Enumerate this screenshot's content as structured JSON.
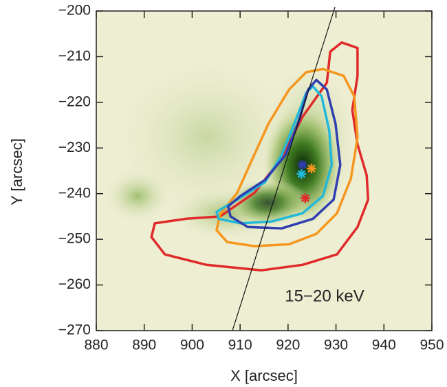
{
  "chart_data": {
    "type": "contour",
    "annotation": "15−20 keV",
    "xlabel": "X [arcsec]",
    "ylabel": "Y [arcsec]",
    "xlim": [
      880,
      950
    ],
    "ylim": [
      -270,
      -200
    ],
    "xticks": [
      880,
      890,
      900,
      910,
      920,
      930,
      940,
      950
    ],
    "yticks": [
      {
        "value": -270,
        "label": "−270"
      },
      {
        "value": -260,
        "label": "−260"
      },
      {
        "value": -250,
        "label": "−250"
      },
      {
        "value": -240,
        "label": "−240"
      },
      {
        "value": -230,
        "label": "−230"
      },
      {
        "value": -220,
        "label": "−220"
      },
      {
        "value": -210,
        "label": "−210"
      },
      {
        "value": -200,
        "label": "−200"
      }
    ],
    "contours": [
      {
        "color": "#e02a2a",
        "x": [
          931.2,
          934.5,
          934.5,
          933.4,
          934.5,
          936.4,
          936.7,
          934.5,
          930.2,
          923.0,
          914.4,
          903.0,
          894.3,
          891.5,
          892.2,
          898.7,
          905.8,
          913.0,
          918.7,
          923.0,
          928.1,
          928.8
        ],
        "y": [
          -206.9,
          -208.1,
          -214.2,
          -221.7,
          -229.2,
          -236.0,
          -241.3,
          -247.3,
          -253.3,
          -255.6,
          -256.8,
          -255.6,
          -253.3,
          -249.5,
          -246.5,
          -245.5,
          -245.0,
          -239.8,
          -232.2,
          -223.2,
          -215.7,
          -208.9
        ]
      },
      {
        "color": "#f5961e",
        "x": [
          927.3,
          931.6,
          933.8,
          934.5,
          933.1,
          930.2,
          925.9,
          920.2,
          913.0,
          907.3,
          905.1,
          905.8,
          909.4,
          912.3,
          915.9,
          920.2,
          923.8
        ],
        "y": [
          -212.7,
          -214.2,
          -218.7,
          -227.7,
          -236.7,
          -244.3,
          -248.8,
          -251.1,
          -251.5,
          -250.6,
          -248.0,
          -244.6,
          -239.8,
          -233.0,
          -224.7,
          -217.2,
          -213.4
        ]
      },
      {
        "color": "#22b8d8",
        "x": [
          925.2,
          927.0,
          928.6,
          929.1,
          927.3,
          923.0,
          916.6,
          910.1,
          905.5,
          905.1,
          909.4,
          915.2,
          918.7,
          921.6,
          923.8
        ],
        "y": [
          -216.5,
          -218.7,
          -226.2,
          -233.7,
          -240.5,
          -244.3,
          -246.1,
          -246.5,
          -245.5,
          -244.0,
          -241.3,
          -237.5,
          -231.5,
          -223.9,
          -217.9
        ]
      },
      {
        "color": "#2f3fb0",
        "x": [
          925.9,
          928.1,
          929.9,
          930.9,
          929.5,
          925.2,
          918.7,
          911.6,
          908.0,
          907.5,
          910.1,
          915.2,
          919.5,
          922.3,
          924.2
        ],
        "y": [
          -215.1,
          -217.2,
          -224.7,
          -233.7,
          -241.3,
          -245.5,
          -247.6,
          -247.3,
          -245.0,
          -242.8,
          -240.5,
          -237.0,
          -231.5,
          -223.9,
          -217.2
        ]
      }
    ],
    "line": {
      "color": "#111111",
      "x": [
        908.4,
        929.8
      ],
      "y": [
        -270,
        -199.1
      ]
    },
    "points": [
      {
        "color": "#2f3fb0",
        "x": 923.0,
        "y": -233.7
      },
      {
        "color": "#f5961e",
        "x": 924.9,
        "y": -234.5
      },
      {
        "color": "#22b8d8",
        "x": 922.8,
        "y": -235.7
      },
      {
        "color": "#e02a2a",
        "x": 923.6,
        "y": -241.0
      }
    ]
  }
}
